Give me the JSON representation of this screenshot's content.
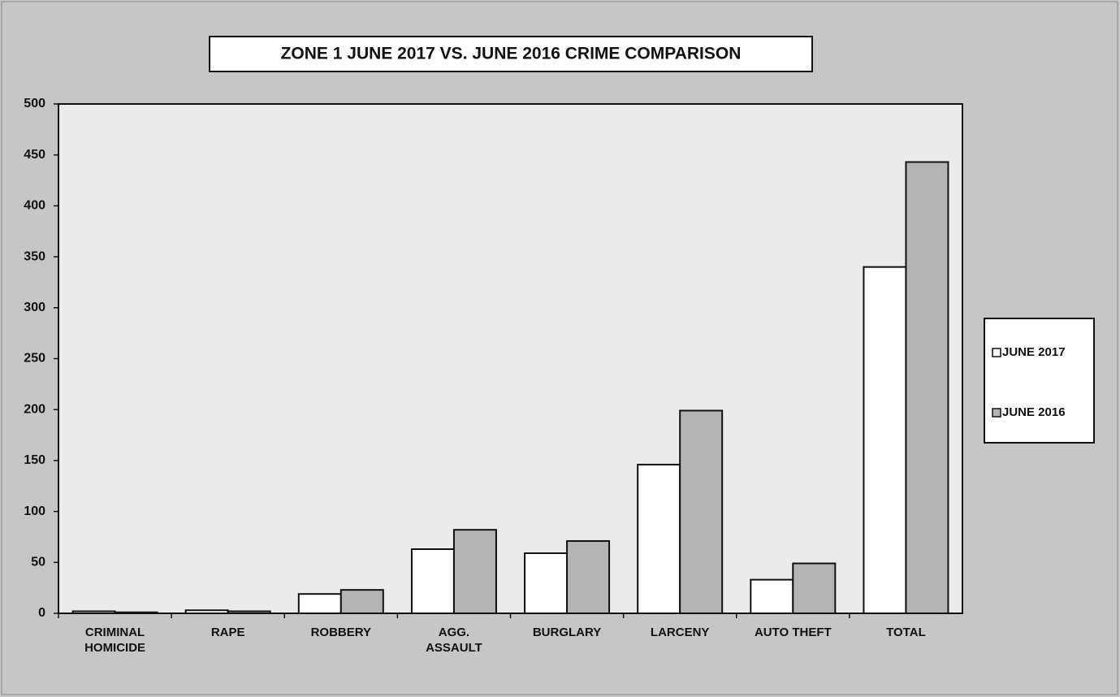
{
  "chart_data": {
    "type": "bar",
    "title": "ZONE 1  JUNE 2017 VS. JUNE 2016 CRIME COMPARISON",
    "categories": [
      "CRIMINAL HOMICIDE",
      "RAPE",
      "ROBBERY",
      "AGG. ASSAULT",
      "BURGLARY",
      "LARCENY",
      "AUTO THEFT",
      "TOTAL"
    ],
    "series": [
      {
        "name": "JUNE 2017",
        "color": "#ffffff",
        "values": [
          2,
          3,
          19,
          63,
          59,
          146,
          33,
          340
        ]
      },
      {
        "name": "JUNE 2016",
        "color": "#b4b4b4",
        "values": [
          1,
          2,
          23,
          82,
          71,
          199,
          49,
          443
        ]
      }
    ],
    "ylim": [
      0,
      500
    ],
    "yticks": [
      0,
      50,
      100,
      150,
      200,
      250,
      300,
      350,
      400,
      450,
      500
    ],
    "legend": "right"
  }
}
